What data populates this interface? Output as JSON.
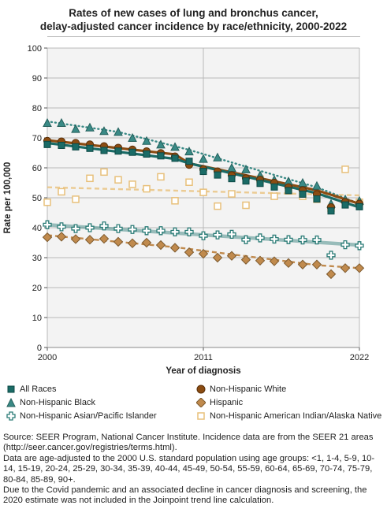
{
  "chart_data": {
    "type": "scatter",
    "title_lines": [
      "Rates of new cases of lung and bronchus cancer,",
      "delay-adjusted cancer incidence by race/ethnicity, 2000-2022"
    ],
    "xlabel": "Year of diagnosis",
    "ylabel": "Rate per 100,000",
    "xlim": [
      2000,
      2022
    ],
    "ylim": [
      0,
      100
    ],
    "yticks": [
      0,
      10,
      20,
      30,
      40,
      50,
      60,
      70,
      80,
      90,
      100
    ],
    "xticks": [
      2000,
      2011,
      2022
    ],
    "xtick_labels": [
      "2000",
      "2011",
      "2022"
    ],
    "grid": true,
    "legend_position": "bottom",
    "x": [
      2000,
      2001,
      2002,
      2003,
      2004,
      2005,
      2006,
      2007,
      2008,
      2009,
      2010,
      2011,
      2012,
      2013,
      2014,
      2015,
      2016,
      2017,
      2018,
      2019,
      2020,
      2021,
      2022
    ],
    "series": [
      {
        "name": "All Races",
        "marker": "square",
        "color": "#1a6b66",
        "trend_style": "solid",
        "values": [
          67.8,
          67.5,
          67.0,
          66.5,
          65.8,
          65.6,
          65.2,
          64.6,
          64.0,
          63.2,
          62.2,
          58.8,
          57.6,
          56.4,
          55.6,
          54.8,
          53.6,
          52.4,
          51.2,
          49.6,
          45.6,
          47.6,
          47.0
        ],
        "trend": [
          [
            2000,
            68.3
          ],
          [
            2009,
            63.0
          ],
          [
            2010,
            61.5
          ],
          [
            2019,
            51.5
          ],
          [
            2022,
            46.8
          ]
        ]
      },
      {
        "name": "Non-Hispanic White",
        "marker": "circle",
        "color": "#8b4c12",
        "trend_style": "solid",
        "values": [
          69.0,
          68.8,
          68.3,
          67.8,
          67.2,
          66.7,
          66.1,
          65.5,
          64.9,
          63.8,
          61.0,
          59.5,
          58.8,
          57.5,
          56.5,
          56.0,
          55.0,
          53.5,
          52.5,
          51.2,
          46.8,
          48.6,
          48.0
        ],
        "trend": [
          [
            2000,
            69.2
          ],
          [
            2009,
            64.5
          ],
          [
            2010,
            61.5
          ],
          [
            2019,
            52.5
          ],
          [
            2022,
            48.0
          ]
        ]
      },
      {
        "name": "Non-Hispanic Black",
        "marker": "triangle",
        "color": "#3a8a86",
        "trend_style": "dotted",
        "values": [
          75.0,
          75.0,
          73.0,
          73.5,
          72.3,
          72.0,
          70.0,
          69.0,
          67.8,
          67.0,
          65.5,
          63.0,
          63.5,
          60.0,
          59.5,
          57.5,
          56.0,
          55.5,
          55.0,
          54.0,
          48.0,
          49.5,
          49.0
        ],
        "trend": [
          [
            2000,
            75.5
          ],
          [
            2005,
            72.0
          ],
          [
            2010,
            66.0
          ],
          [
            2015,
            59.0
          ],
          [
            2019,
            53.5
          ],
          [
            2022,
            48.0
          ]
        ]
      },
      {
        "name": "Hispanic",
        "marker": "diamond",
        "color": "#c08a4d",
        "trend_style": "dashed",
        "values": [
          36.8,
          37.0,
          36.2,
          36.0,
          36.3,
          35.3,
          34.8,
          35.0,
          34.2,
          33.3,
          31.8,
          31.3,
          30.0,
          30.6,
          29.3,
          29.0,
          28.8,
          28.2,
          27.7,
          27.7,
          24.5,
          26.5,
          26.5
        ],
        "trend": [
          [
            2000,
            37.5
          ],
          [
            2009,
            33.5
          ],
          [
            2019,
            27.5
          ],
          [
            2022,
            26.5
          ]
        ]
      },
      {
        "name": "Non-Hispanic Asian/Pacific Islander",
        "marker": "cross",
        "color": "#2a7b76",
        "trend_style": "solid-light",
        "values": [
          41.0,
          40.3,
          39.7,
          40.0,
          40.6,
          39.7,
          39.4,
          39.0,
          39.0,
          38.6,
          38.6,
          37.3,
          37.6,
          37.8,
          36.0,
          36.6,
          36.2,
          36.0,
          35.9,
          35.9,
          30.8,
          34.3,
          34.0
        ],
        "trend": [
          [
            2000,
            41.0
          ],
          [
            2022,
            34.2
          ]
        ]
      },
      {
        "name": "Non-Hispanic American Indian/Alaska Native",
        "marker": "open-square",
        "color": "#e8c07a",
        "trend_style": "dashed-light",
        "values": [
          48.5,
          52.0,
          49.5,
          56.5,
          58.6,
          56.0,
          54.5,
          53.0,
          57.0,
          49.0,
          55.2,
          51.8,
          47.2,
          51.3,
          47.5,
          56.2,
          50.5,
          52.3,
          50.5,
          49.5,
          46.5,
          59.5,
          48.5
        ],
        "trend": [
          [
            2000,
            53.5
          ],
          [
            2022,
            50.8
          ]
        ]
      }
    ]
  },
  "footer": {
    "line1": "Source: SEER Program, National Cancer Institute. Incidence data are from the SEER 21 areas (http://seer.cancer.gov/registries/terms.html).",
    "line2": "Data are age-adjusted to the 2000 U.S. standard population using age groups: <1, 1-4, 5-9, 10-14, 15-19, 20-24, 25-29, 30-34, 35-39, 40-44, 45-49, 50-54, 55-59, 60-64, 65-69, 70-74, 75-79, 80-84, 85-89, 90+.",
    "line3": "Due to the Covid pandemic and an associated decline in cancer diagnosis and screening, the 2020 estimate was not included in the Joinpoint trend line calculation."
  }
}
